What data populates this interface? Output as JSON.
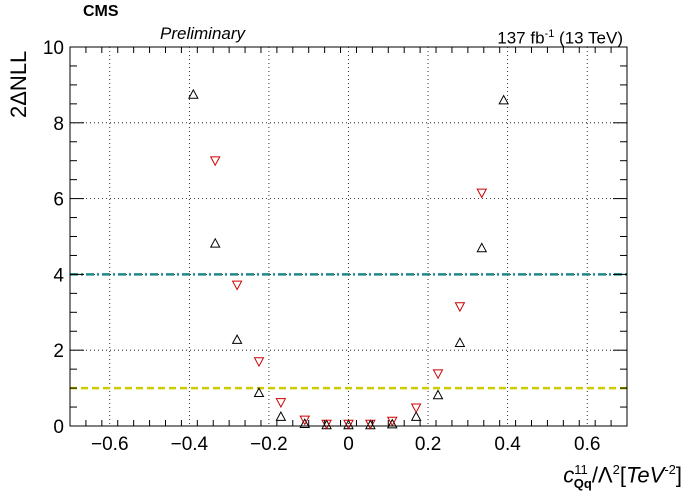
{
  "header": {
    "experiment": "CMS",
    "status": "Preliminary",
    "luminosity": "137 fb",
    "luminosity_exp": "-1",
    "energy": "(13 TeV)"
  },
  "axis": {
    "y_label": "2ΔNLL",
    "x_label": {
      "symbol": "c",
      "sup": "11",
      "sub": "Qq",
      "denominator": "/Λ",
      "denom_exp": "2",
      "unit_open": "[",
      "unit": "TeV",
      "unit_exp": "-2",
      "unit_close": "]"
    }
  },
  "chart_data": {
    "type": "scatter",
    "xlim": [
      -0.7,
      0.7
    ],
    "ylim": [
      0,
      10
    ],
    "x_ticks": [
      -0.6,
      -0.4,
      -0.2,
      0,
      0.2,
      0.4,
      0.6
    ],
    "x_tick_labels": [
      "−0.6",
      "−0.4",
      "−0.2",
      "0",
      "0.2",
      "0.4",
      "0.6"
    ],
    "y_ticks": [
      0,
      2,
      4,
      6,
      8,
      10
    ],
    "y_tick_labels": [
      "0",
      "2",
      "4",
      "6",
      "8",
      "10"
    ],
    "grid": true,
    "series": [
      {
        "marker": "triangle-up",
        "color": "#000000",
        "points": [
          [
            -0.39,
            8.75
          ],
          [
            -0.335,
            4.82
          ],
          [
            -0.28,
            2.28
          ],
          [
            -0.225,
            0.88
          ],
          [
            -0.17,
            0.25
          ],
          [
            -0.11,
            0.06
          ],
          [
            -0.055,
            0.03
          ],
          [
            0.0,
            0.03
          ],
          [
            0.055,
            0.03
          ],
          [
            0.11,
            0.05
          ],
          [
            0.17,
            0.25
          ],
          [
            0.225,
            0.82
          ],
          [
            0.28,
            2.2
          ],
          [
            0.335,
            4.7
          ],
          [
            0.39,
            8.6
          ]
        ]
      },
      {
        "marker": "triangle-down",
        "color": "#cc0000",
        "points": [
          [
            -0.335,
            7.0
          ],
          [
            -0.28,
            3.72
          ],
          [
            -0.225,
            1.7
          ],
          [
            -0.17,
            0.62
          ],
          [
            -0.11,
            0.16
          ],
          [
            -0.055,
            0.05
          ],
          [
            0.0,
            0.05
          ],
          [
            0.055,
            0.05
          ],
          [
            0.11,
            0.13
          ],
          [
            0.17,
            0.48
          ],
          [
            0.225,
            1.38
          ],
          [
            0.28,
            3.15
          ],
          [
            0.335,
            6.15
          ]
        ]
      }
    ],
    "reference_lines": [
      {
        "y": 4,
        "color": "#1f8a8a",
        "style": "dash-dot"
      },
      {
        "y": 1,
        "color": "#cccc00",
        "style": "dashed"
      }
    ]
  }
}
